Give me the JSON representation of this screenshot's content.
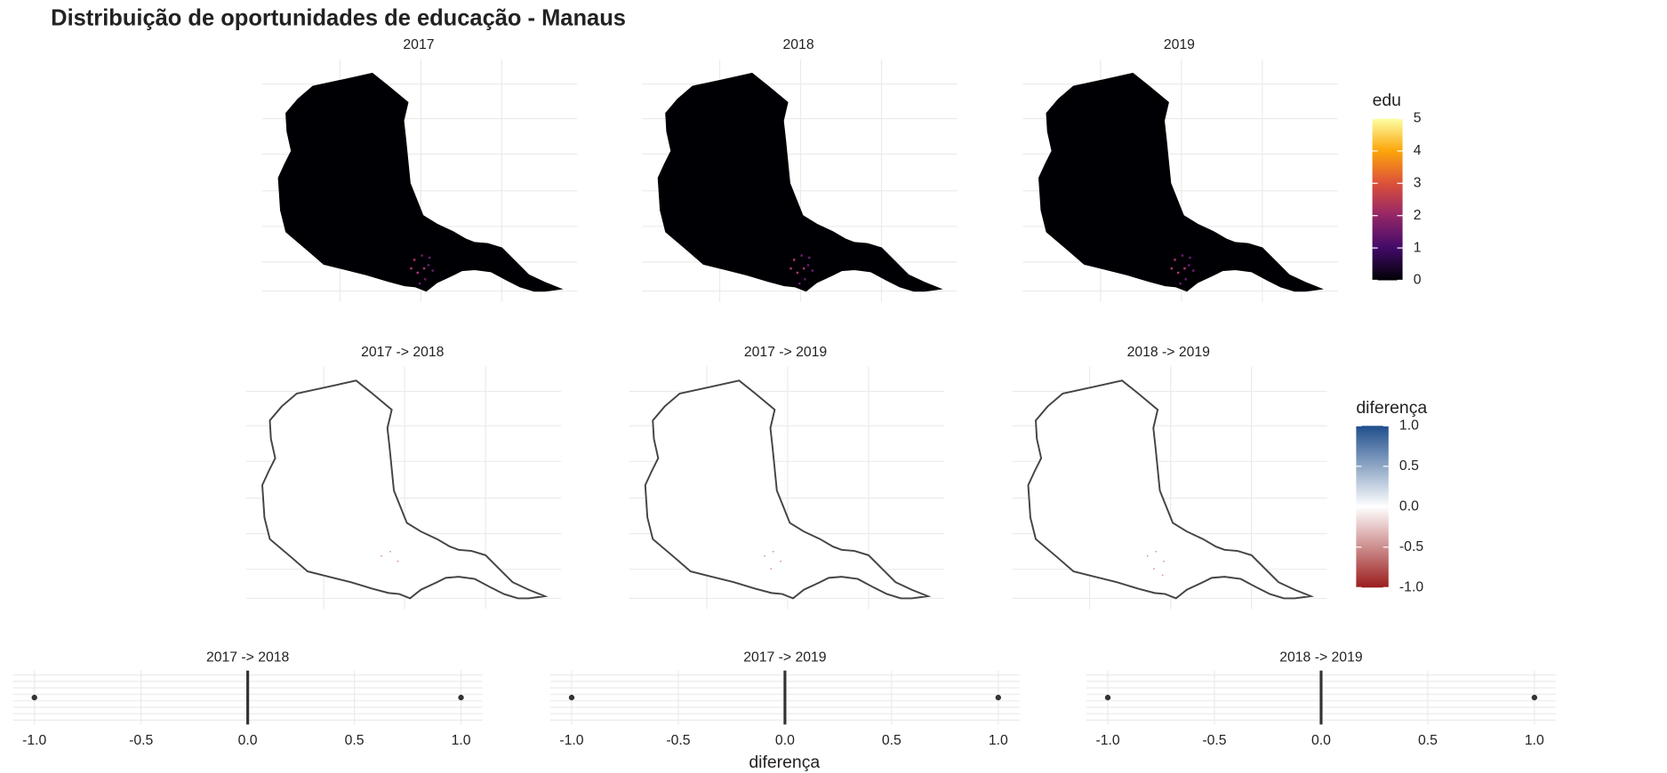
{
  "title": "Distribuição de oportunidades de educação - Manaus",
  "chart_data": [
    {
      "type": "choropleth",
      "facets": [
        "2017",
        "2018",
        "2019"
      ],
      "legend": {
        "title": "edu",
        "lim": [
          0,
          5
        ],
        "ticks": [
          0,
          1,
          2,
          3,
          4,
          5
        ],
        "colors": [
          "#000004",
          "#420a68",
          "#932667",
          "#dd513a",
          "#fca50a",
          "#fcffa4"
        ]
      }
    },
    {
      "type": "choropleth",
      "facets": [
        "2017 -> 2018",
        "2017 -> 2019",
        "2018 -> 2019"
      ],
      "legend": {
        "title": "diferença",
        "lim": [
          -1,
          1
        ],
        "ticks": [
          {
            "value": -1,
            "label": "-1.0"
          },
          {
            "value": -0.5,
            "label": "-0.5"
          },
          {
            "value": 0,
            "label": "0.0"
          },
          {
            "value": 0.5,
            "label": "0.5"
          },
          {
            "value": 1,
            "label": "1.0"
          }
        ],
        "colors": [
          "#9b1c1c",
          "#ffffff",
          "#1f4e8c"
        ]
      }
    },
    {
      "type": "boxplot",
      "facets": [
        "2017 -> 2018",
        "2017 -> 2019",
        "2018 -> 2019"
      ],
      "xlabel": "diferença",
      "xlim": [
        -1.1,
        1.1
      ],
      "xticks": [
        {
          "value": -1,
          "label": "-1.0"
        },
        {
          "value": -0.5,
          "label": "-0.5"
        },
        {
          "value": 0,
          "label": "0.0"
        },
        {
          "value": 0.5,
          "label": "0.5"
        },
        {
          "value": 1,
          "label": "1.0"
        }
      ],
      "series": [
        {
          "median": 0,
          "outliers": [
            -1,
            1
          ]
        },
        {
          "median": 0,
          "outliers": [
            -1,
            1
          ]
        },
        {
          "median": 0,
          "outliers": [
            -1,
            1
          ]
        }
      ]
    }
  ]
}
